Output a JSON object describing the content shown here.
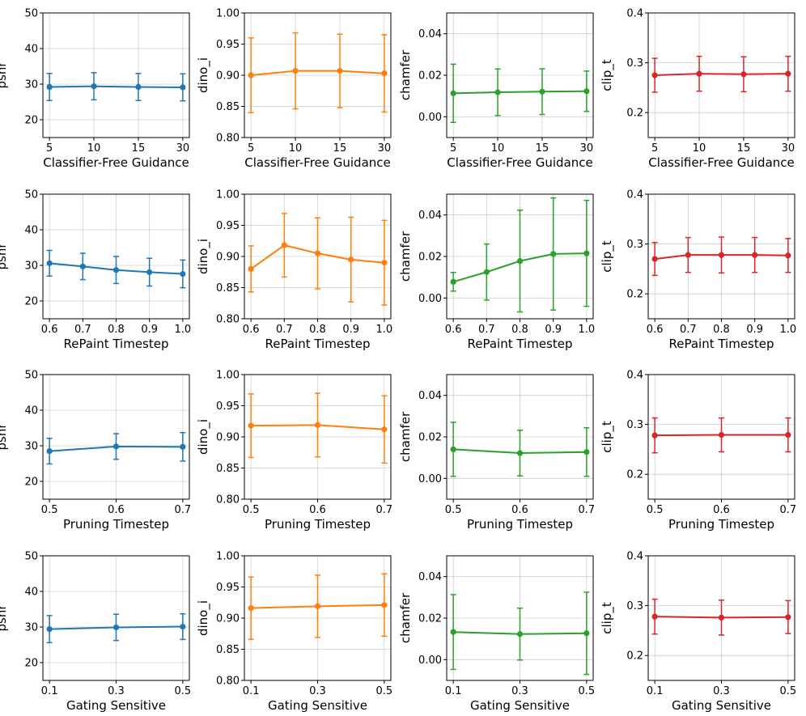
{
  "chart_data": [
    {
      "type": "line",
      "row": 0,
      "col": 0,
      "xlabel": "Classifier-Free Guidance",
      "ylabel": "psnr",
      "categories": [
        "5",
        "10",
        "15",
        "30"
      ],
      "ylim": [
        15,
        50
      ],
      "yticks": [
        20,
        30,
        40,
        50
      ],
      "ytick_labels": [
        "20",
        "30",
        "40",
        "50"
      ],
      "color": "#1f77b4",
      "values": [
        29.2,
        29.4,
        29.2,
        29.1
      ],
      "errors": [
        3.8,
        3.8,
        3.8,
        3.8
      ]
    },
    {
      "type": "line",
      "row": 0,
      "col": 1,
      "xlabel": "Classifier-Free Guidance",
      "ylabel": "dino_i",
      "categories": [
        "5",
        "10",
        "15",
        "30"
      ],
      "ylim": [
        0.8,
        1.0
      ],
      "yticks": [
        0.8,
        0.85,
        0.9,
        0.95,
        1.0
      ],
      "ytick_labels": [
        "0.80",
        "0.85",
        "0.90",
        "0.95",
        "1.00"
      ],
      "color": "#ff7f0e",
      "values": [
        0.9,
        0.907,
        0.907,
        0.903
      ],
      "errors": [
        0.06,
        0.061,
        0.059,
        0.062
      ]
    },
    {
      "type": "line",
      "row": 0,
      "col": 2,
      "xlabel": "Classifier-Free Guidance",
      "ylabel": "chamfer",
      "categories": [
        "5",
        "10",
        "15",
        "30"
      ],
      "ylim": [
        -0.01,
        0.05
      ],
      "yticks": [
        0.0,
        0.02,
        0.04
      ],
      "ytick_labels": [
        "0.00",
        "0.02",
        "0.04"
      ],
      "color": "#2ca02c",
      "values": [
        0.0113,
        0.0118,
        0.0121,
        0.0123
      ],
      "errors": [
        0.014,
        0.0112,
        0.011,
        0.0097
      ]
    },
    {
      "type": "line",
      "row": 0,
      "col": 3,
      "xlabel": "Classifier-Free Guidance",
      "ylabel": "clip_t",
      "categories": [
        "5",
        "10",
        "15",
        "30"
      ],
      "ylim": [
        0.15,
        0.4
      ],
      "yticks": [
        0.2,
        0.3,
        0.4
      ],
      "ytick_labels": [
        "0.2",
        "0.3",
        "0.4"
      ],
      "color": "#d62728",
      "values": [
        0.275,
        0.278,
        0.277,
        0.278
      ],
      "errors": [
        0.034,
        0.035,
        0.035,
        0.035
      ]
    },
    {
      "type": "line",
      "row": 1,
      "col": 0,
      "xlabel": "RePaint Timestep",
      "ylabel": "psnr",
      "categories": [
        "0.6",
        "0.7",
        "0.8",
        "0.9",
        "1.0"
      ],
      "ylim": [
        15,
        50
      ],
      "yticks": [
        20,
        30,
        40,
        50
      ],
      "ytick_labels": [
        "20",
        "30",
        "40",
        "50"
      ],
      "color": "#1f77b4",
      "values": [
        30.6,
        29.7,
        28.7,
        28.1,
        27.6
      ],
      "errors": [
        3.6,
        3.7,
        3.8,
        3.9,
        3.9
      ]
    },
    {
      "type": "line",
      "row": 1,
      "col": 1,
      "xlabel": "RePaint Timestep",
      "ylabel": "dino_i",
      "categories": [
        "0.6",
        "0.7",
        "0.8",
        "0.9",
        "1.0"
      ],
      "ylim": [
        0.8,
        1.0
      ],
      "yticks": [
        0.8,
        0.85,
        0.9,
        0.95,
        1.0
      ],
      "ytick_labels": [
        "0.80",
        "0.85",
        "0.90",
        "0.95",
        "1.00"
      ],
      "color": "#ff7f0e",
      "values": [
        0.88,
        0.918,
        0.905,
        0.895,
        0.89
      ],
      "errors": [
        0.037,
        0.051,
        0.057,
        0.068,
        0.068
      ]
    },
    {
      "type": "line",
      "row": 1,
      "col": 2,
      "xlabel": "RePaint Timestep",
      "ylabel": "chamfer",
      "categories": [
        "0.6",
        "0.7",
        "0.8",
        "0.9",
        "1.0"
      ],
      "ylim": [
        -0.01,
        0.05
      ],
      "yticks": [
        0.0,
        0.02,
        0.04
      ],
      "ytick_labels": [
        "0.00",
        "0.02",
        "0.04"
      ],
      "color": "#2ca02c",
      "values": [
        0.0078,
        0.0125,
        0.0178,
        0.0212,
        0.0215
      ],
      "errors": [
        0.0045,
        0.0135,
        0.0245,
        0.027,
        0.0255
      ]
    },
    {
      "type": "line",
      "row": 1,
      "col": 3,
      "xlabel": "RePaint Timestep",
      "ylabel": "clip_t",
      "categories": [
        "0.6",
        "0.7",
        "0.8",
        "0.9",
        "1.0"
      ],
      "ylim": [
        0.15,
        0.4
      ],
      "yticks": [
        0.2,
        0.3,
        0.4
      ],
      "ytick_labels": [
        "0.2",
        "0.3",
        "0.4"
      ],
      "color": "#d62728",
      "values": [
        0.27,
        0.278,
        0.278,
        0.278,
        0.277
      ],
      "errors": [
        0.033,
        0.035,
        0.036,
        0.035,
        0.034
      ]
    },
    {
      "type": "line",
      "row": 2,
      "col": 0,
      "xlabel": "Pruning Timestep",
      "ylabel": "psnr",
      "categories": [
        "0.5",
        "0.6",
        "0.7"
      ],
      "ylim": [
        15,
        50
      ],
      "yticks": [
        20,
        30,
        40,
        50
      ],
      "ytick_labels": [
        "20",
        "30",
        "40",
        "50"
      ],
      "color": "#1f77b4",
      "values": [
        28.5,
        29.8,
        29.7
      ],
      "errors": [
        3.6,
        3.6,
        4.0
      ]
    },
    {
      "type": "line",
      "row": 2,
      "col": 1,
      "xlabel": "Pruning Timestep",
      "ylabel": "dino_i",
      "categories": [
        "0.5",
        "0.6",
        "0.7"
      ],
      "ylim": [
        0.8,
        1.0
      ],
      "yticks": [
        0.8,
        0.85,
        0.9,
        0.95,
        1.0
      ],
      "ytick_labels": [
        "0.80",
        "0.85",
        "0.90",
        "0.95",
        "1.00"
      ],
      "color": "#ff7f0e",
      "values": [
        0.918,
        0.919,
        0.912
      ],
      "errors": [
        0.051,
        0.051,
        0.054
      ]
    },
    {
      "type": "line",
      "row": 2,
      "col": 2,
      "xlabel": "Pruning Timestep",
      "ylabel": "chamfer",
      "categories": [
        "0.5",
        "0.6",
        "0.7"
      ],
      "ylim": [
        -0.01,
        0.05
      ],
      "yticks": [
        0.0,
        0.02,
        0.04
      ],
      "ytick_labels": [
        "0.00",
        "0.02",
        "0.04"
      ],
      "color": "#2ca02c",
      "values": [
        0.014,
        0.0122,
        0.0127
      ],
      "errors": [
        0.013,
        0.011,
        0.0117
      ]
    },
    {
      "type": "line",
      "row": 2,
      "col": 3,
      "xlabel": "Pruning Timestep",
      "ylabel": "clip_t",
      "categories": [
        "0.5",
        "0.6",
        "0.7"
      ],
      "ylim": [
        0.15,
        0.4
      ],
      "yticks": [
        0.2,
        0.3,
        0.4
      ],
      "ytick_labels": [
        "0.2",
        "0.3",
        "0.4"
      ],
      "color": "#d62728",
      "values": [
        0.278,
        0.279,
        0.279
      ],
      "errors": [
        0.035,
        0.034,
        0.034
      ]
    },
    {
      "type": "line",
      "row": 3,
      "col": 0,
      "xlabel": "Gating Sensitive",
      "ylabel": "psnr",
      "categories": [
        "0.1",
        "0.3",
        "0.5"
      ],
      "ylim": [
        15,
        50
      ],
      "yticks": [
        20,
        30,
        40,
        50
      ],
      "ytick_labels": [
        "20",
        "30",
        "40",
        "50"
      ],
      "color": "#1f77b4",
      "values": [
        29.4,
        29.9,
        30.1
      ],
      "errors": [
        3.8,
        3.7,
        3.6
      ]
    },
    {
      "type": "line",
      "row": 3,
      "col": 1,
      "xlabel": "Gating Sensitive",
      "ylabel": "dino_i",
      "categories": [
        "0.1",
        "0.3",
        "0.5"
      ],
      "ylim": [
        0.8,
        1.0
      ],
      "yticks": [
        0.8,
        0.85,
        0.9,
        0.95,
        1.0
      ],
      "ytick_labels": [
        "0.80",
        "0.85",
        "0.90",
        "0.95",
        "1.00"
      ],
      "color": "#ff7f0e",
      "values": [
        0.916,
        0.919,
        0.921
      ],
      "errors": [
        0.05,
        0.05,
        0.05
      ]
    },
    {
      "type": "line",
      "row": 3,
      "col": 2,
      "xlabel": "Gating Sensitive",
      "ylabel": "chamfer",
      "categories": [
        "0.1",
        "0.3",
        "0.5"
      ],
      "ylim": [
        -0.01,
        0.05
      ],
      "yticks": [
        0.0,
        0.02,
        0.04
      ],
      "ytick_labels": [
        "0.00",
        "0.02",
        "0.04"
      ],
      "color": "#2ca02c",
      "values": [
        0.0133,
        0.0123,
        0.0127
      ],
      "errors": [
        0.018,
        0.0125,
        0.0198
      ]
    },
    {
      "type": "line",
      "row": 3,
      "col": 3,
      "xlabel": "Gating Sensitive",
      "ylabel": "clip_t",
      "categories": [
        "0.1",
        "0.3",
        "0.5"
      ],
      "ylim": [
        0.15,
        0.4
      ],
      "yticks": [
        0.2,
        0.3,
        0.4
      ],
      "ytick_labels": [
        "0.2",
        "0.3",
        "0.4"
      ],
      "color": "#d62728",
      "values": [
        0.278,
        0.276,
        0.277
      ],
      "errors": [
        0.035,
        0.035,
        0.033
      ]
    }
  ]
}
